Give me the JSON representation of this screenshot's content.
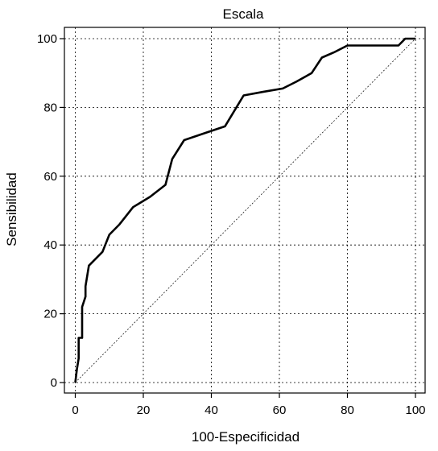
{
  "chart_data": {
    "type": "line",
    "title": "Escala",
    "xlabel": "100-Especificidad",
    "ylabel": "Sensibilidad",
    "xlim": [
      0,
      100
    ],
    "ylim": [
      0,
      100
    ],
    "xticks": [
      "0",
      "20",
      "40",
      "60",
      "80",
      "100"
    ],
    "yticks": [
      "0",
      "20",
      "40",
      "60",
      "80",
      "100"
    ],
    "grid": true,
    "reference_line": [
      [
        0,
        0
      ],
      [
        100,
        100
      ]
    ],
    "series": [
      {
        "x": [
          0,
          0.5,
          1,
          1,
          1.5,
          2,
          2,
          3,
          3,
          4,
          6,
          8,
          10,
          13,
          17,
          22,
          26.5,
          28.5,
          32,
          38,
          44,
          49.5,
          55,
          61,
          65,
          69.5,
          72.5,
          76,
          80,
          95,
          97,
          100
        ],
        "y": [
          0,
          4,
          7,
          13,
          13,
          13,
          22,
          25,
          28,
          34,
          36,
          38,
          43,
          46,
          51,
          54,
          57.5,
          65,
          70.5,
          72.5,
          74.5,
          83.5,
          84.5,
          85.5,
          87.5,
          90,
          94.5,
          96,
          98,
          98,
          100,
          100
        ]
      }
    ]
  }
}
